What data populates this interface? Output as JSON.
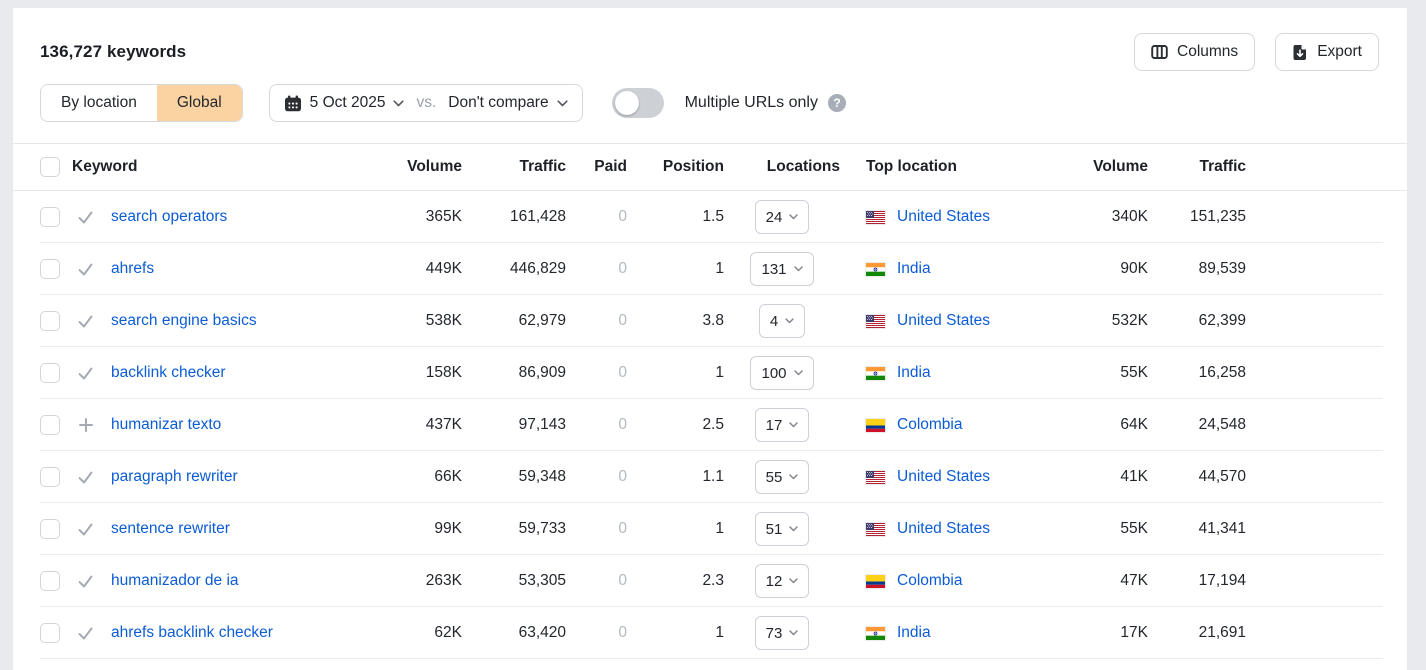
{
  "header": {
    "title": "136,727 keywords",
    "columns_label": "Columns",
    "export_label": "Export"
  },
  "filters": {
    "by_location_label": "By location",
    "global_label": "Global",
    "selected_mode": "Global",
    "date": "5 Oct 2025",
    "vs_label": "vs.",
    "compare": "Don't compare",
    "multiple_urls_label": "Multiple URLs only",
    "multiple_urls_enabled": false
  },
  "colors": {
    "selected_tab_bg": "#fbd3a2",
    "link_blue": "#0b5cd5",
    "paid_zero_gray": "#b3b9c1"
  },
  "table": {
    "headers": [
      "Keyword",
      "Volume",
      "Traffic",
      "Paid",
      "Position",
      "Locations",
      "Top location",
      "Volume",
      "Traffic"
    ],
    "rows": [
      {
        "status_icon": "check",
        "keyword": "search operators",
        "volume": "365K",
        "traffic": "161,428",
        "paid": "0",
        "position": "1.5",
        "locations": "24",
        "flag": "us",
        "top_location": "United States",
        "top_volume": "340K",
        "top_traffic": "151,235"
      },
      {
        "status_icon": "check",
        "keyword": "ahrefs",
        "volume": "449K",
        "traffic": "446,829",
        "paid": "0",
        "position": "1",
        "locations": "131",
        "flag": "in",
        "top_location": "India",
        "top_volume": "90K",
        "top_traffic": "89,539"
      },
      {
        "status_icon": "check",
        "keyword": "search engine basics",
        "volume": "538K",
        "traffic": "62,979",
        "paid": "0",
        "position": "3.8",
        "locations": "4",
        "flag": "us",
        "top_location": "United States",
        "top_volume": "532K",
        "top_traffic": "62,399"
      },
      {
        "status_icon": "check",
        "keyword": "backlink checker",
        "volume": "158K",
        "traffic": "86,909",
        "paid": "0",
        "position": "1",
        "locations": "100",
        "flag": "in",
        "top_location": "India",
        "top_volume": "55K",
        "top_traffic": "16,258"
      },
      {
        "status_icon": "plus",
        "keyword": "humanizar texto",
        "volume": "437K",
        "traffic": "97,143",
        "paid": "0",
        "position": "2.5",
        "locations": "17",
        "flag": "co",
        "top_location": "Colombia",
        "top_volume": "64K",
        "top_traffic": "24,548"
      },
      {
        "status_icon": "check",
        "keyword": "paragraph rewriter",
        "volume": "66K",
        "traffic": "59,348",
        "paid": "0",
        "position": "1.1",
        "locations": "55",
        "flag": "us",
        "top_location": "United States",
        "top_volume": "41K",
        "top_traffic": "44,570"
      },
      {
        "status_icon": "check",
        "keyword": "sentence rewriter",
        "volume": "99K",
        "traffic": "59,733",
        "paid": "0",
        "position": "1",
        "locations": "51",
        "flag": "us",
        "top_location": "United States",
        "top_volume": "55K",
        "top_traffic": "41,341"
      },
      {
        "status_icon": "check",
        "keyword": "humanizador de ia",
        "volume": "263K",
        "traffic": "53,305",
        "paid": "0",
        "position": "2.3",
        "locations": "12",
        "flag": "co",
        "top_location": "Colombia",
        "top_volume": "47K",
        "top_traffic": "17,194"
      },
      {
        "status_icon": "check",
        "keyword": "ahrefs backlink checker",
        "volume": "62K",
        "traffic": "63,420",
        "paid": "0",
        "position": "1",
        "locations": "73",
        "flag": "in",
        "top_location": "India",
        "top_volume": "17K",
        "top_traffic": "21,691"
      }
    ]
  }
}
